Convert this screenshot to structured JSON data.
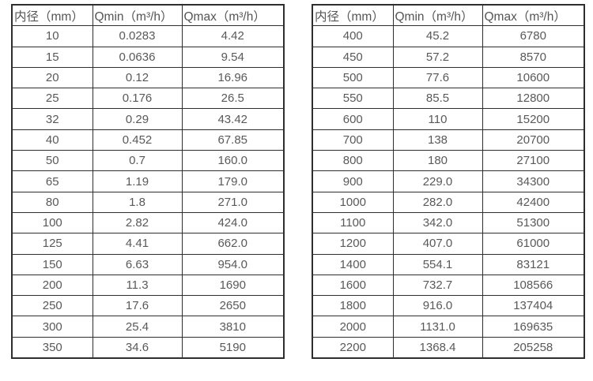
{
  "table_left": {
    "headers": [
      "内径（mm）",
      "Qmin（m³/h）",
      "Qmax（m³/h）"
    ],
    "rows": [
      [
        "10",
        "0.0283",
        "4.42"
      ],
      [
        "15",
        "0.0636",
        "9.54"
      ],
      [
        "20",
        "0.12",
        "16.96"
      ],
      [
        "25",
        "0.176",
        "26.5"
      ],
      [
        "32",
        "0.29",
        "43.42"
      ],
      [
        "40",
        "0.452",
        "67.85"
      ],
      [
        "50",
        "0.7",
        "160.0"
      ],
      [
        "65",
        "1.19",
        "179.0"
      ],
      [
        "80",
        "1.8",
        "271.0"
      ],
      [
        "100",
        "2.82",
        "424.0"
      ],
      [
        "125",
        "4.41",
        "662.0"
      ],
      [
        "150",
        "6.63",
        "954.0"
      ],
      [
        "200",
        "11.3",
        "1690"
      ],
      [
        "250",
        "17.6",
        "2650"
      ],
      [
        "300",
        "25.4",
        "3810"
      ],
      [
        "350",
        "34.6",
        "5190"
      ]
    ]
  },
  "table_right": {
    "headers": [
      "内径（mm）",
      "Qmin（m³/h）",
      "Qmax（m³/h）"
    ],
    "rows": [
      [
        "400",
        "45.2",
        "6780"
      ],
      [
        "450",
        "57.2",
        "8570"
      ],
      [
        "500",
        "77.6",
        "10600"
      ],
      [
        "550",
        "85.5",
        "12800"
      ],
      [
        "600",
        "110",
        "15200"
      ],
      [
        "700",
        "138",
        "20700"
      ],
      [
        "800",
        "180",
        "27100"
      ],
      [
        "900",
        "229.0",
        "34300"
      ],
      [
        "1000",
        "282.0",
        "42400"
      ],
      [
        "1100",
        "342.0",
        "51300"
      ],
      [
        "1200",
        "407.0",
        "61000"
      ],
      [
        "1400",
        "554.1",
        "83121"
      ],
      [
        "1600",
        "732.7",
        "108566"
      ],
      [
        "1800",
        "916.0",
        "137404"
      ],
      [
        "2000",
        "1131.0",
        "169635"
      ],
      [
        "2200",
        "1368.4",
        "205258"
      ]
    ]
  },
  "colors": {
    "border": "#2e2e2e",
    "text": "#595959",
    "background": "#ffffff"
  }
}
